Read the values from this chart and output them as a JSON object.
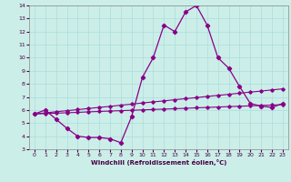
{
  "xlabel": "Windchill (Refroidissement éolien,°C)",
  "bg_color": "#cceee8",
  "line_color": "#880088",
  "grid_color": "#aadddd",
  "xlim": [
    -0.5,
    23.5
  ],
  "ylim": [
    3,
    14
  ],
  "yticks": [
    3,
    4,
    5,
    6,
    7,
    8,
    9,
    10,
    11,
    12,
    13,
    14
  ],
  "xticks": [
    0,
    1,
    2,
    3,
    4,
    5,
    6,
    7,
    8,
    9,
    10,
    11,
    12,
    13,
    14,
    15,
    16,
    17,
    18,
    19,
    20,
    21,
    22,
    23
  ],
  "line1_x": [
    0,
    1,
    2,
    3,
    4,
    5,
    6,
    7,
    8,
    9,
    10,
    11,
    12,
    13,
    14,
    15,
    16,
    17,
    18,
    19,
    20,
    21,
    22,
    23
  ],
  "line1_y": [
    5.7,
    6.0,
    5.3,
    4.6,
    4.0,
    3.9,
    3.9,
    3.8,
    3.5,
    5.5,
    8.5,
    10.0,
    12.5,
    12.0,
    13.5,
    14.0,
    12.5,
    10.0,
    9.2,
    7.8,
    6.5,
    6.3,
    6.2,
    6.5
  ],
  "line2_x": [
    0,
    1,
    2,
    3,
    4,
    5,
    6,
    7,
    8,
    9,
    10,
    11,
    12,
    13,
    14,
    15,
    16,
    17,
    18,
    19,
    20,
    21,
    22,
    23
  ],
  "line2_y": [
    5.7,
    5.78,
    5.87,
    5.95,
    6.03,
    6.12,
    6.2,
    6.28,
    6.37,
    6.45,
    6.54,
    6.62,
    6.7,
    6.79,
    6.87,
    6.95,
    7.04,
    7.12,
    7.2,
    7.29,
    7.37,
    7.45,
    7.54,
    7.62
  ],
  "line3_x": [
    0,
    1,
    2,
    3,
    4,
    5,
    6,
    7,
    8,
    9,
    10,
    11,
    12,
    13,
    14,
    15,
    16,
    17,
    18,
    19,
    20,
    21,
    22,
    23
  ],
  "line3_y": [
    5.7,
    5.73,
    5.76,
    5.79,
    5.82,
    5.86,
    5.89,
    5.92,
    5.95,
    5.98,
    6.01,
    6.04,
    6.07,
    6.1,
    6.13,
    6.17,
    6.2,
    6.23,
    6.26,
    6.29,
    6.32,
    6.35,
    6.38,
    6.41
  ]
}
